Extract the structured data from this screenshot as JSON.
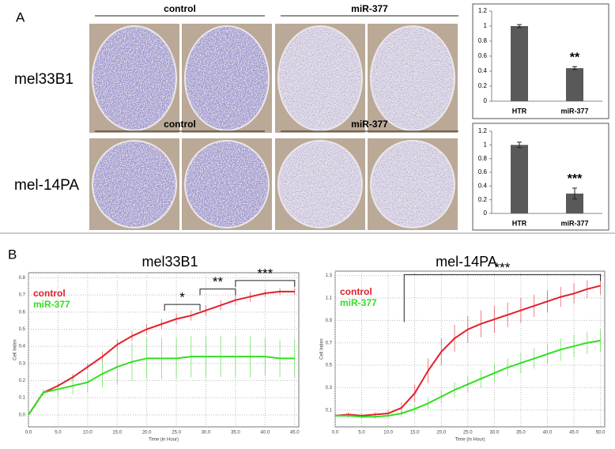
{
  "panel_labels": {
    "a": "A",
    "b": "B"
  },
  "panel_a": {
    "rows": [
      "mel33B1",
      "mel-14PA"
    ],
    "groups": [
      [
        "control",
        "miR-377"
      ],
      [
        "control",
        "miR-377"
      ]
    ]
  },
  "chart_data": [
    {
      "type": "bar",
      "categories": [
        "HTR",
        "miR-377"
      ],
      "values": [
        1.0,
        0.44
      ],
      "errors": [
        0.02,
        0.02
      ],
      "color": "#595959",
      "annotation": "**",
      "ylim": [
        0,
        1.2
      ],
      "yticks": [
        0,
        0.2,
        0.4,
        0.6,
        0.8,
        1,
        1.2
      ]
    },
    {
      "type": "bar",
      "categories": [
        "HTR",
        "miR-377"
      ],
      "values": [
        1.0,
        0.29
      ],
      "errors": [
        0.04,
        0.08
      ],
      "color": "#595959",
      "annotation": "***",
      "ylim": [
        0,
        1.2
      ],
      "yticks": [
        0,
        0.2,
        0.4,
        0.6,
        0.8,
        1,
        1.2
      ]
    },
    {
      "type": "line",
      "title": "mel33B1",
      "xlabel": "Time (in Hour)",
      "ylabel": "Cell Index",
      "grid": true,
      "legend": "upper left",
      "x": [
        0,
        2.5,
        5,
        7.5,
        10,
        12.5,
        15,
        17.5,
        20,
        22.5,
        25,
        27.5,
        30,
        32.5,
        35,
        37.5,
        40,
        42.5,
        45
      ],
      "series": [
        {
          "name": "control",
          "color": "#e0202a",
          "values": [
            0.0,
            0.13,
            0.17,
            0.22,
            0.28,
            0.34,
            0.41,
            0.46,
            0.5,
            0.53,
            0.56,
            0.58,
            0.61,
            0.64,
            0.67,
            0.69,
            0.71,
            0.72,
            0.72
          ],
          "errors": [
            0,
            0.01,
            0.01,
            0.02,
            0.02,
            0.03,
            0.03,
            0.03,
            0.03,
            0.03,
            0.03,
            0.03,
            0.03,
            0.03,
            0.03,
            0.03,
            0.02,
            0.02,
            0.02
          ]
        },
        {
          "name": "miR-377",
          "color": "#33dd22",
          "values": [
            0.0,
            0.13,
            0.15,
            0.17,
            0.19,
            0.24,
            0.28,
            0.31,
            0.33,
            0.33,
            0.33,
            0.34,
            0.34,
            0.34,
            0.34,
            0.34,
            0.34,
            0.33,
            0.33
          ],
          "errors": [
            0,
            0.02,
            0.04,
            0.05,
            0.06,
            0.08,
            0.1,
            0.11,
            0.12,
            0.12,
            0.12,
            0.12,
            0.12,
            0.12,
            0.12,
            0.12,
            0.11,
            0.11,
            0.11
          ]
        }
      ],
      "significance": [
        {
          "label": "*",
          "from": 23,
          "to": 29
        },
        {
          "label": "**",
          "from": 29,
          "to": 35
        },
        {
          "label": "***",
          "from": 35,
          "to": 45
        }
      ],
      "xlim": [
        0,
        45.7
      ],
      "ylim": [
        -0.07,
        0.83
      ],
      "xticks": [
        {
          "value": 0,
          "label": "0.0"
        },
        {
          "value": 5,
          "label": "5.0"
        },
        {
          "value": 10,
          "label": "10.0"
        },
        {
          "value": 15,
          "label": "15.0"
        },
        {
          "value": 20,
          "label": "20.0"
        },
        {
          "value": 25,
          "label": "25.0"
        },
        {
          "value": 30,
          "label": "30.0"
        },
        {
          "value": 35,
          "label": "35.0"
        },
        {
          "value": 40,
          "label": "40.0"
        },
        {
          "value": 45,
          "label": "45.0"
        }
      ],
      "yticks": [
        {
          "value": 0,
          "label": "0.0"
        },
        0.1,
        0.2,
        0.3,
        0.4,
        0.5,
        0.6,
        0.7,
        0.8
      ]
    },
    {
      "type": "line",
      "title": "mel-14PA",
      "xlabel": "Time (in Hour)",
      "ylabel": "Cell Index",
      "grid": true,
      "legend": "upper left",
      "x": [
        0,
        2.5,
        5,
        7.5,
        10,
        12.5,
        15,
        17.5,
        20,
        22.5,
        25,
        27.5,
        30,
        32.5,
        35,
        37.5,
        40,
        42.5,
        45,
        47.5,
        50
      ],
      "series": [
        {
          "name": "control",
          "color": "#e0202a",
          "values": [
            0.05,
            0.06,
            0.05,
            0.06,
            0.07,
            0.12,
            0.25,
            0.45,
            0.62,
            0.74,
            0.82,
            0.87,
            0.91,
            0.95,
            0.99,
            1.03,
            1.07,
            1.11,
            1.14,
            1.18,
            1.21
          ],
          "errors": [
            0.02,
            0.02,
            0.02,
            0.02,
            0.03,
            0.05,
            0.08,
            0.11,
            0.12,
            0.12,
            0.12,
            0.12,
            0.12,
            0.11,
            0.11,
            0.1,
            0.1,
            0.09,
            0.09,
            0.08,
            0.08
          ]
        },
        {
          "name": "miR-377",
          "color": "#33dd22",
          "values": [
            0.05,
            0.05,
            0.04,
            0.04,
            0.05,
            0.07,
            0.11,
            0.16,
            0.22,
            0.28,
            0.33,
            0.38,
            0.43,
            0.48,
            0.52,
            0.56,
            0.6,
            0.64,
            0.67,
            0.7,
            0.72
          ],
          "errors": [
            0.02,
            0.02,
            0.02,
            0.02,
            0.02,
            0.03,
            0.04,
            0.05,
            0.06,
            0.07,
            0.07,
            0.08,
            0.08,
            0.08,
            0.09,
            0.09,
            0.09,
            0.1,
            0.1,
            0.1,
            0.1
          ]
        }
      ],
      "significance": [
        {
          "label": "***",
          "from": 13,
          "to": 50
        }
      ],
      "xlim": [
        0,
        50.8
      ],
      "ylim": [
        -0.05,
        1.34
      ],
      "xticks": [
        {
          "value": 0,
          "label": "0.0"
        },
        {
          "value": 5,
          "label": "5.0"
        },
        {
          "value": 10,
          "label": "10.0"
        },
        {
          "value": 15,
          "label": "15.0"
        },
        {
          "value": 20,
          "label": "20.0"
        },
        {
          "value": 25,
          "label": "25.0"
        },
        {
          "value": 30,
          "label": "30.0"
        },
        {
          "value": 35,
          "label": "35.0"
        },
        {
          "value": 40,
          "label": "40.0"
        },
        {
          "value": 45,
          "label": "45.0"
        },
        {
          "value": 50,
          "label": "50.0"
        }
      ],
      "yticks": [
        0.1,
        0.3,
        0.5,
        0.7,
        0.9,
        1.1,
        1.3
      ]
    }
  ]
}
